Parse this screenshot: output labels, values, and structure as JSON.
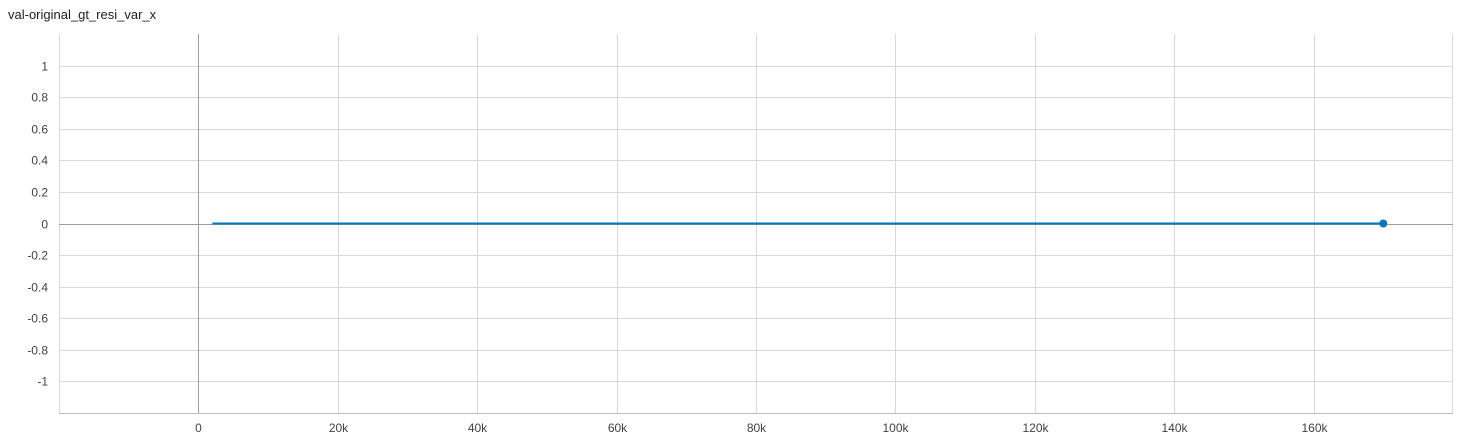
{
  "chart_data": {
    "type": "line",
    "title": "val-original_gt_resi_var_x",
    "xlabel": "",
    "ylabel": "",
    "xlim": [
      -20000,
      180000
    ],
    "ylim": [
      -1.2,
      1.2
    ],
    "x_ticks": [
      0,
      20000,
      40000,
      60000,
      80000,
      100000,
      120000,
      140000,
      160000
    ],
    "x_tick_labels": [
      "0",
      "20k",
      "40k",
      "60k",
      "80k",
      "100k",
      "120k",
      "140k",
      "160k"
    ],
    "y_ticks": [
      1,
      0.8,
      0.6,
      0.4,
      0.2,
      0,
      -0.2,
      -0.4,
      -0.6,
      -0.8,
      -1
    ],
    "y_tick_labels": [
      "1",
      "0.8",
      "0.6",
      "0.4",
      "0.2",
      "0",
      "-0.2",
      "-0.4",
      "-0.6",
      "-0.8",
      "-1"
    ],
    "grid": true,
    "series": [
      {
        "x": [
          2000,
          170000
        ],
        "y": [
          0,
          0
        ],
        "color": "#0077bb",
        "last_point_marker": true
      }
    ]
  }
}
